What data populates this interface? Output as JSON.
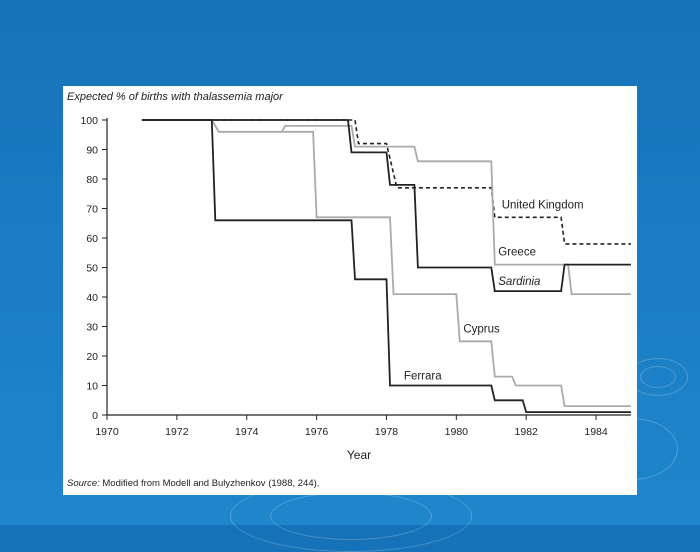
{
  "chart_data": {
    "type": "line",
    "title": "Expected % of births with thalassemia major",
    "xlabel": "Year",
    "ylabel": "",
    "xlim": [
      1970,
      1985
    ],
    "ylim": [
      0,
      100
    ],
    "x_ticks": [
      1970,
      1972,
      1974,
      1976,
      1978,
      1980,
      1982,
      1984
    ],
    "y_ticks": [
      0,
      10,
      20,
      30,
      40,
      50,
      60,
      70,
      80,
      90,
      100
    ],
    "grid": false,
    "series": [
      {
        "name": "United Kingdom",
        "style": "dashed",
        "color": "#222222",
        "x": [
          1972.3,
          1977.1,
          1977.2,
          1978.0,
          1978.3,
          1981.0,
          1981.1,
          1983.0,
          1983.1,
          1985.0
        ],
        "y": [
          100,
          100,
          92,
          92,
          77,
          77,
          67,
          67,
          58,
          58
        ]
      },
      {
        "name": "Greece",
        "style": "solid",
        "color": "#aaaaaa",
        "x": [
          1973.0,
          1973.2,
          1975.0,
          1975.1,
          1977.0,
          1977.1,
          1978.8,
          1978.9,
          1981.0,
          1981.1,
          1983.2,
          1983.3,
          1985.0
        ],
        "y": [
          100,
          96,
          96,
          98,
          98,
          91,
          91,
          86,
          86,
          51,
          51,
          41,
          41
        ]
      },
      {
        "name": "Sardinia",
        "style": "solid",
        "color": "#222222",
        "x": [
          1971.0,
          1976.9,
          1977.0,
          1978.0,
          1978.1,
          1978.8,
          1978.9,
          1981.0,
          1981.1,
          1983.0,
          1983.1,
          1985.0
        ],
        "y": [
          100,
          100,
          89,
          89,
          78,
          78,
          50,
          50,
          42,
          42,
          51,
          51
        ]
      },
      {
        "name": "Cyprus",
        "style": "solid",
        "color": "#aaaaaa",
        "x": [
          1975.0,
          1975.9,
          1976.0,
          1978.1,
          1978.2,
          1980.0,
          1980.1,
          1981.0,
          1981.1,
          1981.6,
          1981.7,
          1983.0,
          1983.1,
          1985.0
        ],
        "y": [
          96,
          96,
          67,
          67,
          41,
          41,
          25,
          25,
          13,
          13,
          10,
          10,
          3,
          3
        ]
      },
      {
        "name": "Ferrara",
        "style": "solid",
        "color": "#222222",
        "x": [
          1971.0,
          1973.0,
          1973.1,
          1977.0,
          1977.1,
          1978.0,
          1978.1,
          1981.0,
          1981.1,
          1981.9,
          1982.0,
          1985.0
        ],
        "y": [
          100,
          100,
          66,
          66,
          46,
          46,
          10,
          10,
          5,
          5,
          1,
          1
        ]
      }
    ],
    "annotations": [
      {
        "text": "United Kingdom",
        "x": 1981.3,
        "y": 70
      },
      {
        "text": "Greece",
        "x": 1981.2,
        "y": 54
      },
      {
        "text": "Sardinia",
        "x": 1981.2,
        "y": 44
      },
      {
        "text": "Cyprus",
        "x": 1980.2,
        "y": 28
      },
      {
        "text": "Ferrara",
        "x": 1978.5,
        "y": 12
      }
    ],
    "source_lead": "Source:",
    "source": "Modified from Modell and Bulyzhenkov (1988, 244)."
  }
}
